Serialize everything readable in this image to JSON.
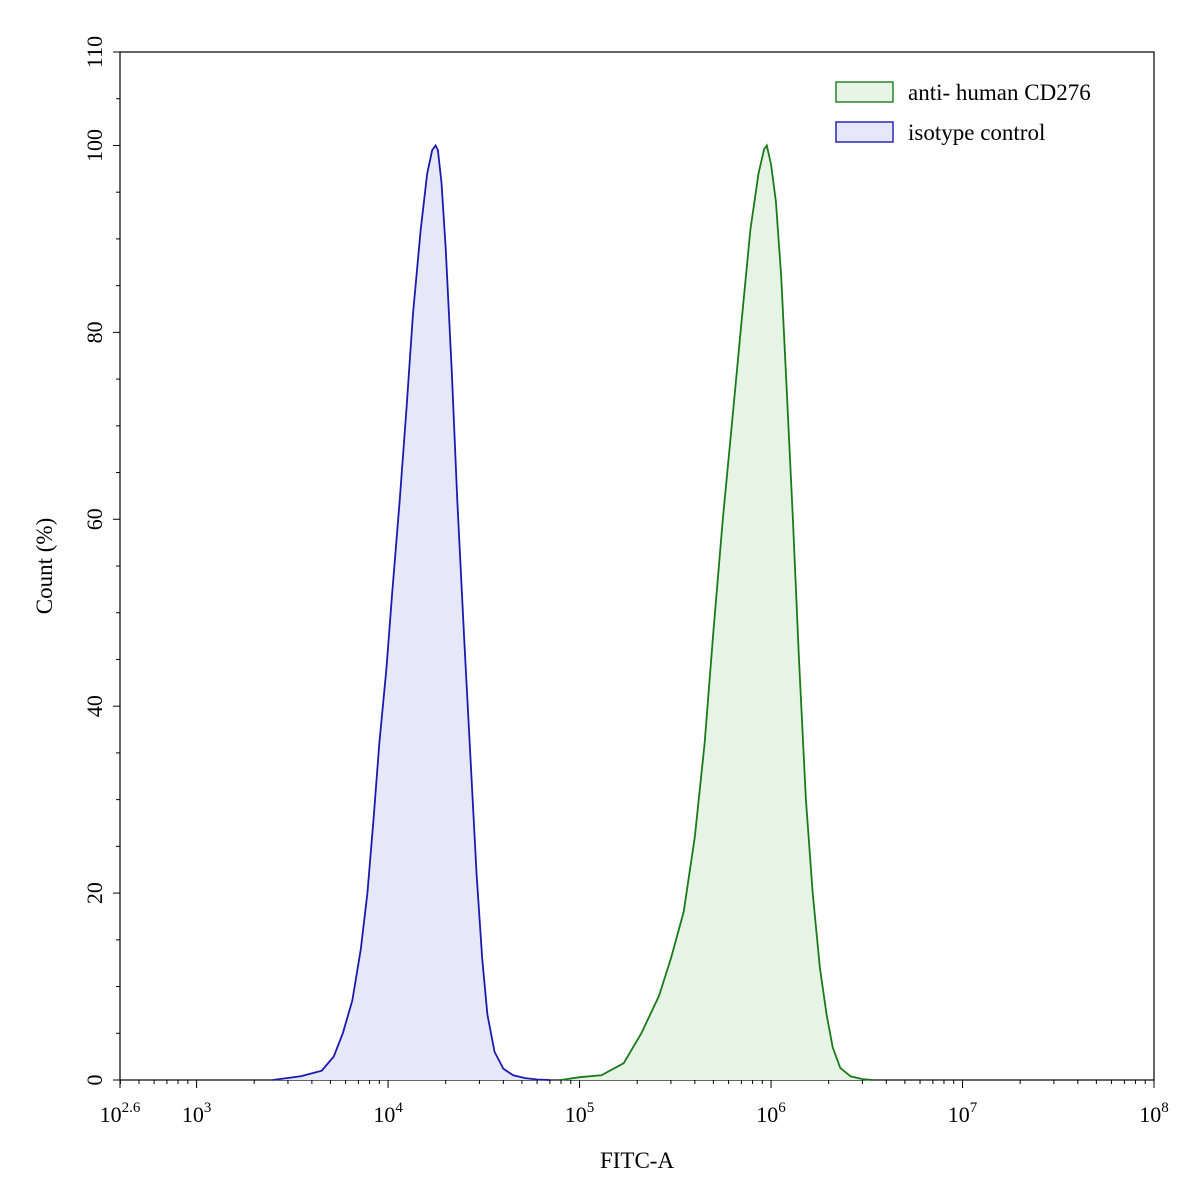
{
  "chart_data": {
    "type": "area",
    "title": "",
    "xlabel": "FITC-A",
    "ylabel": "Count  (%)",
    "x_scale": "log10",
    "xlim": [
      398.1,
      100000000
    ],
    "ylim": [
      0,
      110
    ],
    "grid": false,
    "legend_position": "top-right",
    "x_ticks": [
      {
        "base": "10",
        "exp": "2.6"
      },
      {
        "base": "10",
        "exp": "3"
      },
      {
        "base": "10",
        "exp": "4"
      },
      {
        "base": "10",
        "exp": "5"
      },
      {
        "base": "10",
        "exp": "6"
      },
      {
        "base": "10",
        "exp": "7"
      },
      {
        "base": "10",
        "exp": "8"
      }
    ],
    "y_ticks": [
      "0",
      "20",
      "40",
      "60",
      "80",
      "100",
      "110"
    ],
    "series": [
      {
        "name": "anti- human CD276",
        "stroke": "#1a7a1a",
        "fill": "#e6f4e6",
        "x": [
          80000,
          100000,
          130000,
          170000,
          210000,
          260000,
          300000,
          350000,
          400000,
          450000,
          500000,
          560000,
          630000,
          700000,
          780000,
          860000,
          920000,
          950000,
          1000000,
          1060000,
          1130000,
          1200000,
          1300000,
          1400000,
          1520000,
          1650000,
          1800000,
          1950000,
          2100000,
          2300000,
          2600000,
          3000000,
          3400000
        ],
        "y": [
          0,
          0.3,
          0.5,
          1.8,
          5,
          9,
          13,
          18,
          26,
          36,
          48,
          60,
          71,
          81,
          91,
          97,
          99.6,
          100,
          98,
          94,
          86,
          75,
          60,
          45,
          30,
          20,
          12,
          7,
          3.5,
          1.3,
          0.4,
          0.1,
          0
        ]
      },
      {
        "name": "isotype control",
        "stroke": "#1a1ab0",
        "fill": "#e6e8f8",
        "x": [
          2500,
          3500,
          4500,
          5200,
          5800,
          6500,
          7200,
          7800,
          8400,
          9000,
          9800,
          10500,
          11500,
          12500,
          13500,
          14800,
          16000,
          17000,
          17700,
          18200,
          19000,
          20000,
          21500,
          23000,
          25000,
          27000,
          29000,
          31000,
          33000,
          36000,
          40000,
          45000,
          52000,
          60000,
          70000
        ],
        "y": [
          0,
          0.4,
          1,
          2.5,
          5,
          8.5,
          14,
          20,
          28,
          36,
          44,
          52,
          62,
          72,
          82,
          91,
          97,
          99.5,
          100,
          99.5,
          96,
          89,
          76,
          62,
          47,
          34,
          22,
          13,
          7,
          3,
          1.2,
          0.5,
          0.2,
          0.05,
          0
        ]
      }
    ]
  }
}
